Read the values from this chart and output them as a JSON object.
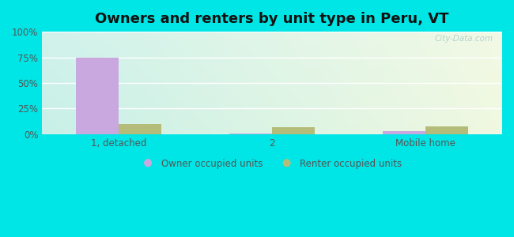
{
  "title": "Owners and renters by unit type in Peru, VT",
  "categories": [
    "1, detached",
    "2",
    "Mobile home"
  ],
  "owner_values": [
    75,
    1,
    3
  ],
  "renter_values": [
    10,
    7,
    8
  ],
  "owner_color": "#c9a8e0",
  "renter_color": "#b5bc7a",
  "ylim": [
    0,
    100
  ],
  "yticks": [
    0,
    25,
    50,
    75,
    100
  ],
  "ytick_labels": [
    "0%",
    "25%",
    "50%",
    "75%",
    "100%"
  ],
  "bar_width": 0.28,
  "title_fontsize": 13,
  "legend_labels": [
    "Owner occupied units",
    "Renter occupied units"
  ],
  "outer_bg": "#00e5e5",
  "watermark": "City-Data.com"
}
